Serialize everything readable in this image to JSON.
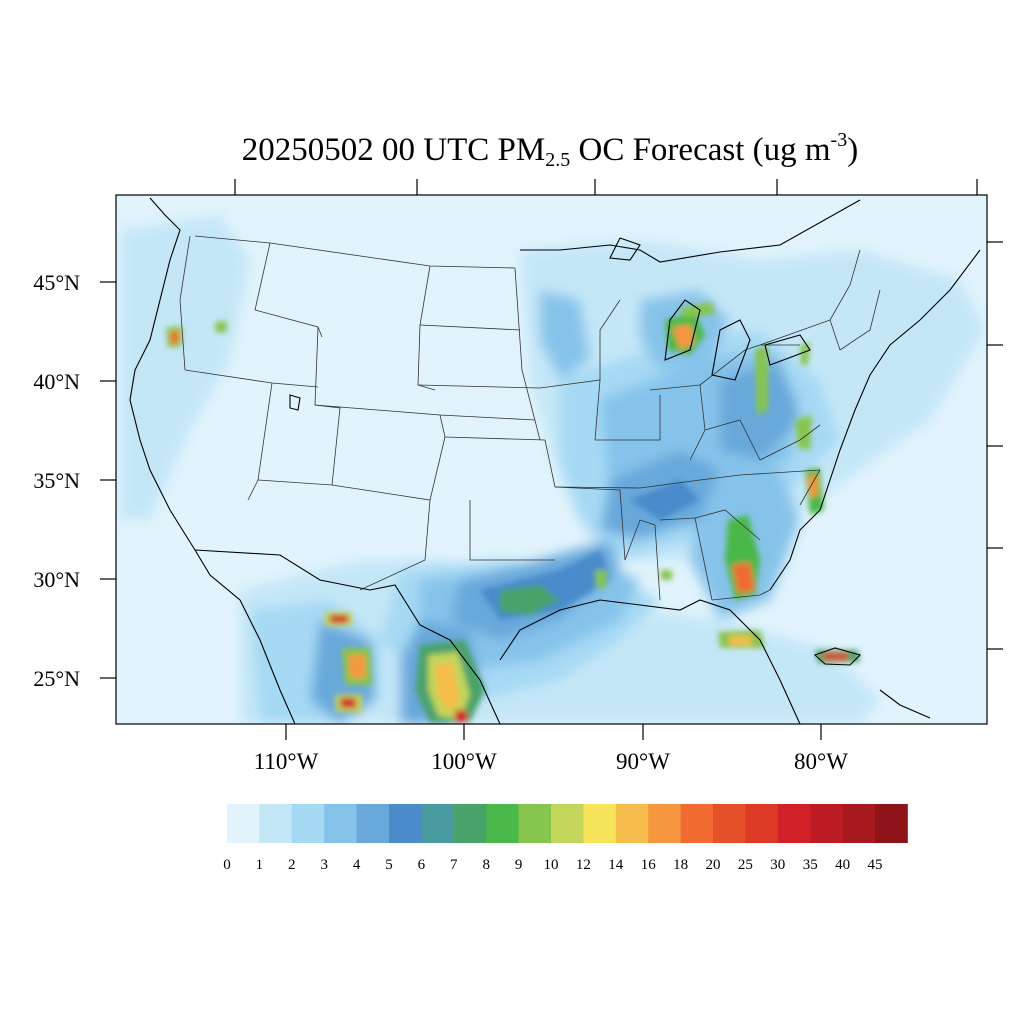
{
  "title": {
    "main": "20250502 00 UTC PM",
    "sub": "2.5",
    "mid": " OC Forecast (ug m",
    "sup": "-3",
    "end": ")"
  },
  "map": {
    "region": "Continental United States",
    "lat_labels": [
      "45°N",
      "40°N",
      "35°N",
      "30°N",
      "25°N"
    ],
    "lon_labels": [
      "110°W",
      "100°W",
      "90°W",
      "80°W"
    ]
  },
  "colorbar": {
    "labels": [
      "0",
      "1",
      "2",
      "3",
      "4",
      "5",
      "6",
      "7",
      "8",
      "9",
      "10",
      "12",
      "14",
      "16",
      "18",
      "20",
      "25",
      "30",
      "35",
      "40",
      "45"
    ],
    "colors": [
      "#e1f3fc",
      "#c4e7f8",
      "#a6d9f4",
      "#86c3ea",
      "#68a8db",
      "#4a8bcb",
      "#4a9ba0",
      "#4aa36a",
      "#4ab84a",
      "#86c54e",
      "#c3d55a",
      "#f6e45a",
      "#f6bd4c",
      "#f6963f",
      "#f26b30",
      "#e55028",
      "#dd3a26",
      "#d32129",
      "#bd1b24",
      "#a8181f",
      "#8f141a"
    ]
  }
}
